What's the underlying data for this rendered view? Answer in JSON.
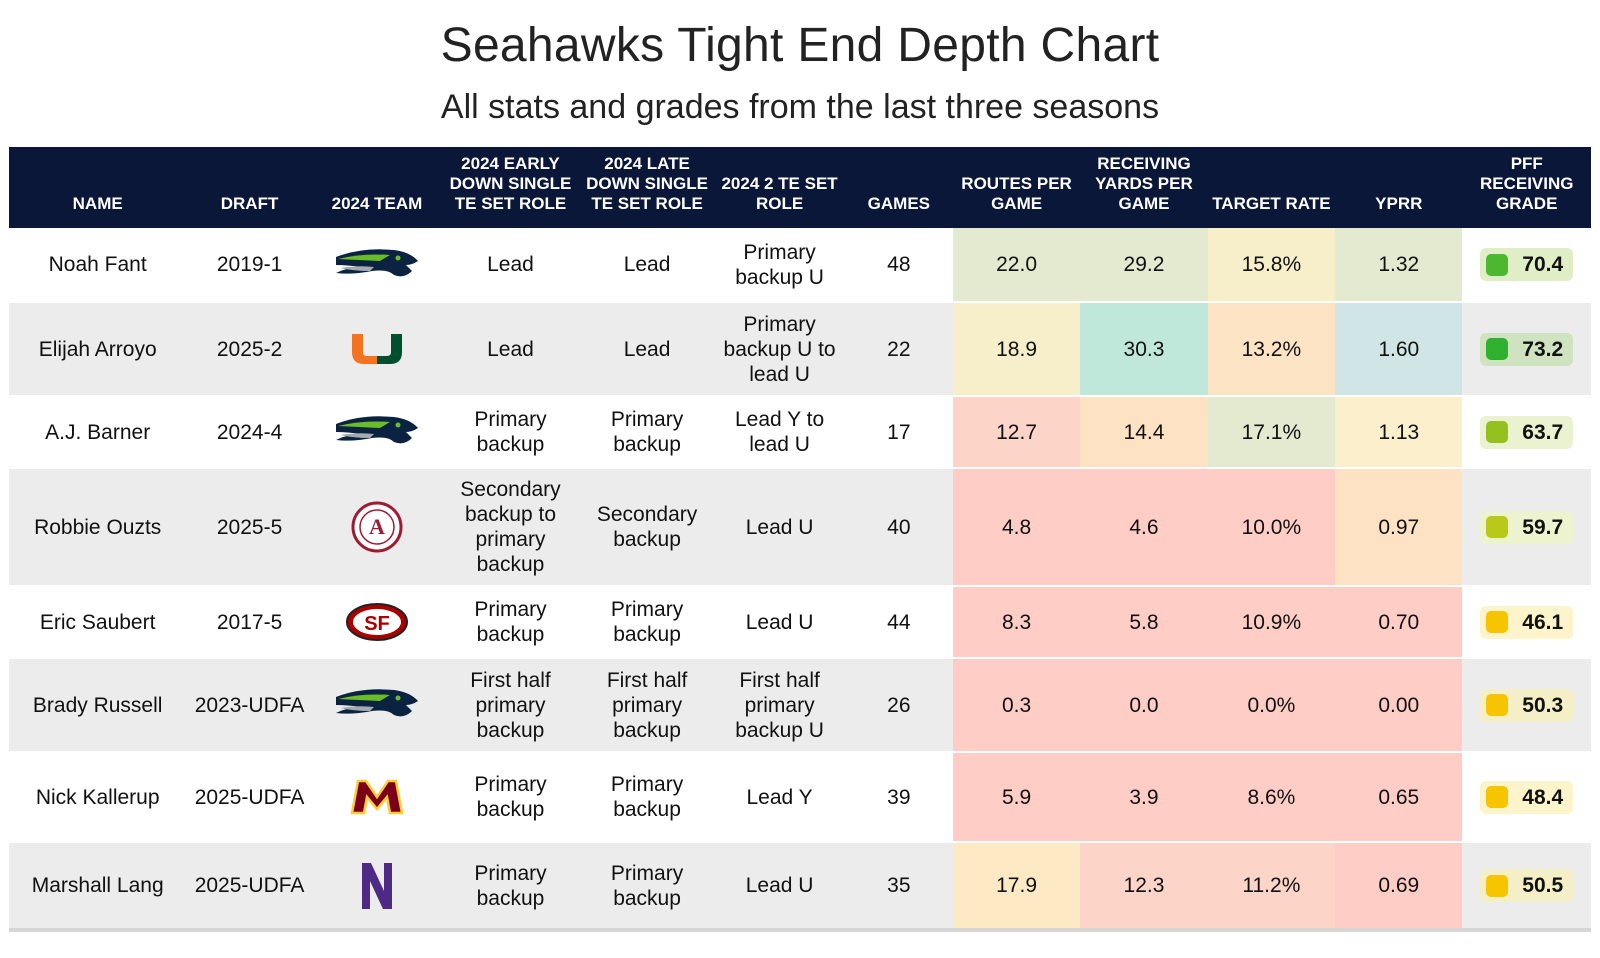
{
  "title": "Seahawks Tight End Depth Chart",
  "subtitle": "All stats and grades from the last three seasons",
  "headers": [
    "Name",
    "Draft",
    "2024 Team",
    "2024 Early Down Single TE Set Role",
    "2024 Late Down Single TE Set Role",
    "2024 2 TE Set Role",
    "Games",
    "Routes per game",
    "Receiving yards per game",
    "Target rate",
    "YPRR",
    "PFF receiving grade"
  ],
  "rows": [
    {
      "name": "Noah Fant",
      "draft": "2019-1",
      "team_logo": "seahawks-logo",
      "early": "Lead",
      "late": "Lead",
      "two_te": "Primary backup U",
      "games": "48",
      "routes": "22.0",
      "yards": "29.2",
      "target": "15.8%",
      "yprr": "1.32",
      "grade": "70.4",
      "colors": {
        "routes": "#e3ead0",
        "yards": "#e3ead0",
        "target": "#f6efca",
        "yprr": "#e3ead0",
        "grade_bg": "#e0eec8",
        "grade_dot": "#4bb82f"
      }
    },
    {
      "name": "Elijah Arroyo",
      "draft": "2025-2",
      "team_logo": "miami-logo",
      "early": "Lead",
      "late": "Lead",
      "two_te": "Primary backup U to lead U",
      "games": "22",
      "routes": "18.9",
      "yards": "30.3",
      "target": "13.2%",
      "yprr": "1.60",
      "grade": "73.2",
      "colors": {
        "routes": "#f6efca",
        "yards": "#bfe8db",
        "target": "#fbe3c4",
        "yprr": "#cfe5e6",
        "grade_bg": "#cfe3c0",
        "grade_dot": "#2fb02f"
      }
    },
    {
      "name": "A.J. Barner",
      "draft": "2024-4",
      "team_logo": "seahawks-logo",
      "early": "Primary backup",
      "late": "Primary backup",
      "two_te": "Lead Y to lead U",
      "games": "17",
      "routes": "12.7",
      "yards": "14.4",
      "target": "17.1%",
      "yprr": "1.13",
      "grade": "63.7",
      "colors": {
        "routes": "#fdd4c8",
        "yards": "#fde3c4",
        "target": "#e3ead0",
        "yprr": "#fbefcc",
        "grade_bg": "#eaf2cf",
        "grade_dot": "#95c11f"
      }
    },
    {
      "name": "Robbie Ouzts",
      "draft": "2025-5",
      "team_logo": "alabama-logo",
      "early": "Secondary backup to primary backup",
      "late": "Secondary backup",
      "two_te": "Lead U",
      "games": "40",
      "routes": "4.8",
      "yards": "4.6",
      "target": "10.0%",
      "yprr": "0.97",
      "grade": "59.7",
      "colors": {
        "routes": "#fdcdc6",
        "yards": "#fdcdc6",
        "target": "#fdcdc6",
        "yprr": "#fde3c4",
        "grade_bg": "#eef3cf",
        "grade_dot": "#b8c91a"
      }
    },
    {
      "name": "Eric Saubert",
      "draft": "2017-5",
      "team_logo": "49ers-logo",
      "early": "Primary backup",
      "late": "Primary backup",
      "two_te": "Lead U",
      "games": "44",
      "routes": "8.3",
      "yards": "5.8",
      "target": "10.9%",
      "yprr": "0.70",
      "grade": "46.1",
      "colors": {
        "routes": "#fdcdc6",
        "yards": "#fdcdc6",
        "target": "#fdcdc6",
        "yprr": "#fdcdc6",
        "grade_bg": "#fdf4cc",
        "grade_dot": "#f7c400"
      }
    },
    {
      "name": "Brady Russell",
      "draft": "2023-UDFA",
      "team_logo": "seahawks-logo",
      "early": "First half primary backup",
      "late": "First half primary backup",
      "two_te": "First half primary backup U",
      "games": "26",
      "routes": "0.3",
      "yards": "0.0",
      "target": "0.0%",
      "yprr": "0.00",
      "grade": "50.3",
      "colors": {
        "routes": "#fdcdc6",
        "yards": "#fdcdc6",
        "target": "#fdcdc6",
        "yprr": "#fdcdc6",
        "grade_bg": "#f5efc8",
        "grade_dot": "#f7c400"
      }
    },
    {
      "name": "Nick Kallerup",
      "draft": "2025-UDFA",
      "team_logo": "minnesota-logo",
      "early": "Primary backup",
      "late": "Primary backup",
      "two_te": "Lead Y",
      "games": "39",
      "routes": "5.9",
      "yards": "3.9",
      "target": "8.6%",
      "yprr": "0.65",
      "grade": "48.4",
      "colors": {
        "routes": "#fdcdc6",
        "yards": "#fdcdc6",
        "target": "#fdcdc6",
        "yprr": "#fdcdc6",
        "grade_bg": "#fdf4cc",
        "grade_dot": "#f7c400"
      }
    },
    {
      "name": "Marshall Lang",
      "draft": "2025-UDFA",
      "team_logo": "northwestern-logo",
      "early": "Primary backup",
      "late": "Primary backup",
      "two_te": "Lead U",
      "games": "35",
      "routes": "17.9",
      "yards": "12.3",
      "target": "11.2%",
      "yprr": "0.69",
      "grade": "50.5",
      "colors": {
        "routes": "#fde9c4",
        "yards": "#fdd4c8",
        "target": "#fdd4c8",
        "yprr": "#fdcdc6",
        "grade_bg": "#f5efc8",
        "grade_dot": "#f7c400"
      }
    }
  ]
}
